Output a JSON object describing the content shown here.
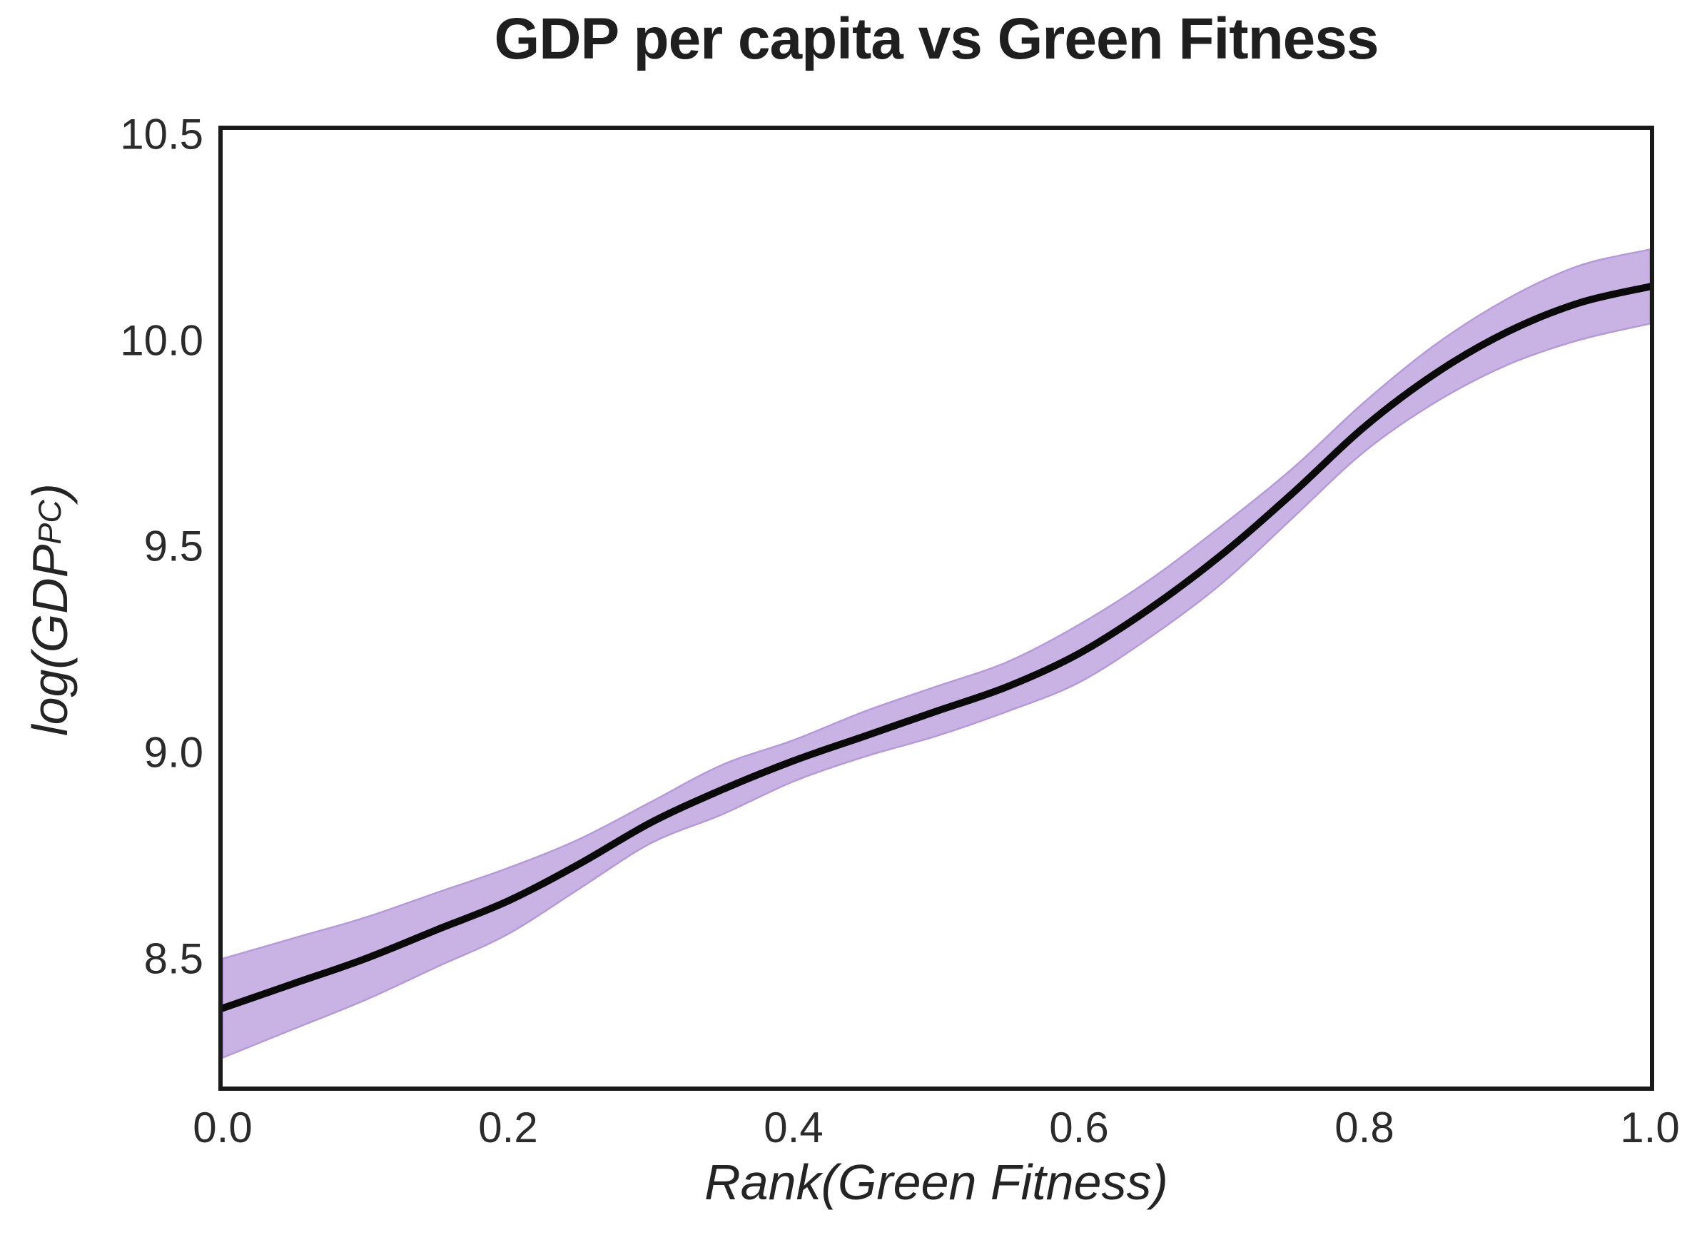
{
  "figure": {
    "title": "GDP per capita vs Green Fitness"
  },
  "chart_data": {
    "type": "line",
    "title": "GDP per capita vs Green Fitness",
    "xlabel": "Rank(Green Fitness)",
    "ylabel": {
      "prefix": "log(GDP",
      "sub": "PC",
      "suffix": ")"
    },
    "ylabel_plain": "log(GDP_PC)",
    "x": [
      0.0,
      0.05,
      0.1,
      0.15,
      0.2,
      0.25,
      0.3,
      0.35,
      0.4,
      0.45,
      0.5,
      0.55,
      0.6,
      0.65,
      0.7,
      0.75,
      0.8,
      0.85,
      0.9,
      0.95,
      1.0
    ],
    "series": [
      {
        "name": "lowess-regression-line",
        "values": [
          8.38,
          8.44,
          8.5,
          8.57,
          8.64,
          8.73,
          8.83,
          8.91,
          8.98,
          9.04,
          9.1,
          9.16,
          9.24,
          9.35,
          9.48,
          9.63,
          9.79,
          9.92,
          10.02,
          10.09,
          10.13
        ]
      }
    ],
    "ci_lower": [
      8.26,
      8.33,
      8.4,
      8.48,
      8.56,
      8.67,
      8.78,
      8.85,
      8.93,
      8.99,
      9.04,
      9.1,
      9.17,
      9.28,
      9.41,
      9.57,
      9.73,
      9.85,
      9.94,
      10.0,
      10.04
    ],
    "ci_upper": [
      8.5,
      8.55,
      8.6,
      8.66,
      8.72,
      8.79,
      8.88,
      8.97,
      9.03,
      9.1,
      9.16,
      9.22,
      9.31,
      9.42,
      9.55,
      9.69,
      9.85,
      9.99,
      10.1,
      10.18,
      10.22
    ],
    "xlim": [
      0.0,
      1.0
    ],
    "ylim": [
      8.19,
      10.51
    ],
    "xtick_labels": [
      "0.0",
      "0.2",
      "0.4",
      "0.6",
      "0.8",
      "1.0"
    ],
    "ytick_labels": [
      "8.5",
      "9.0",
      "9.5",
      "10.0",
      "10.5"
    ],
    "grid": false,
    "legend": null,
    "colors": {
      "line": "#0a0a0a",
      "band": "#c9b3e4",
      "band_edge": "#b69ad8",
      "spine": "#1a1a1a",
      "text": "#242424",
      "tick_text": "#2b2b2b",
      "background": "#ffffff"
    }
  }
}
